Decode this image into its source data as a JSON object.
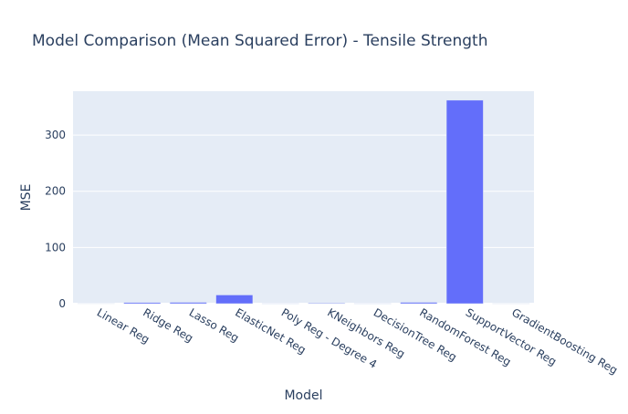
{
  "chart_data": {
    "type": "bar",
    "title": "Model Comparison (Mean Squared Error) - Tensile Strength",
    "xlabel": "Model",
    "ylabel": "MSE",
    "categories": [
      "Linear Reg",
      "Ridge Reg",
      "Lasso Reg",
      "ElasticNet Reg",
      "Poly Reg - Degree 4",
      "KNeighbors Reg",
      "DecisionTree Reg",
      "RandomForest Reg",
      "SupportVector Reg",
      "GradientBoosting Reg"
    ],
    "values": [
      0.5,
      2.2,
      2.4,
      15.5,
      0.3,
      1.2,
      0.3,
      2.4,
      362,
      0.4
    ],
    "ylim": [
      0,
      378
    ],
    "yticks": [
      0,
      100,
      200,
      300
    ],
    "grid": true,
    "legend": "none",
    "colors": {
      "bar": "#636efa",
      "plot_bg": "#e5ecf6",
      "grid": "#ffffff",
      "text": "#2a3f5f"
    }
  }
}
